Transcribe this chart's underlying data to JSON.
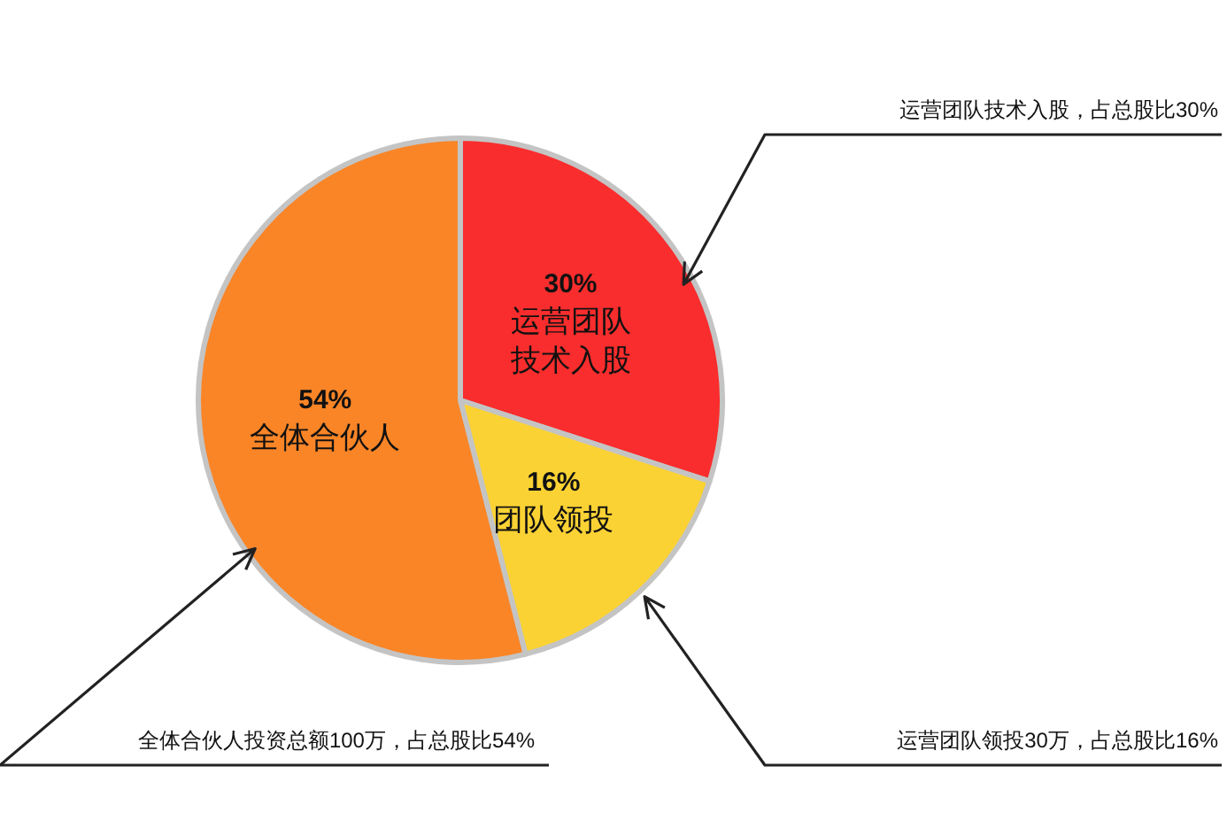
{
  "chart_data": {
    "type": "pie",
    "categories": [
      "运营团队技术入股",
      "团队领投",
      "全体合伙人"
    ],
    "values": [
      30,
      16,
      54
    ],
    "value_labels": [
      "30%",
      "16%",
      "54%"
    ],
    "colors": [
      "#f92d2d",
      "#fbd234",
      "#f98527"
    ],
    "annotations": [
      "运营团队技术入股，占总股比30%",
      "运营团队领投30万，占总股比16%",
      "全体合伙人投资总额100万，占总股比54%"
    ]
  }
}
